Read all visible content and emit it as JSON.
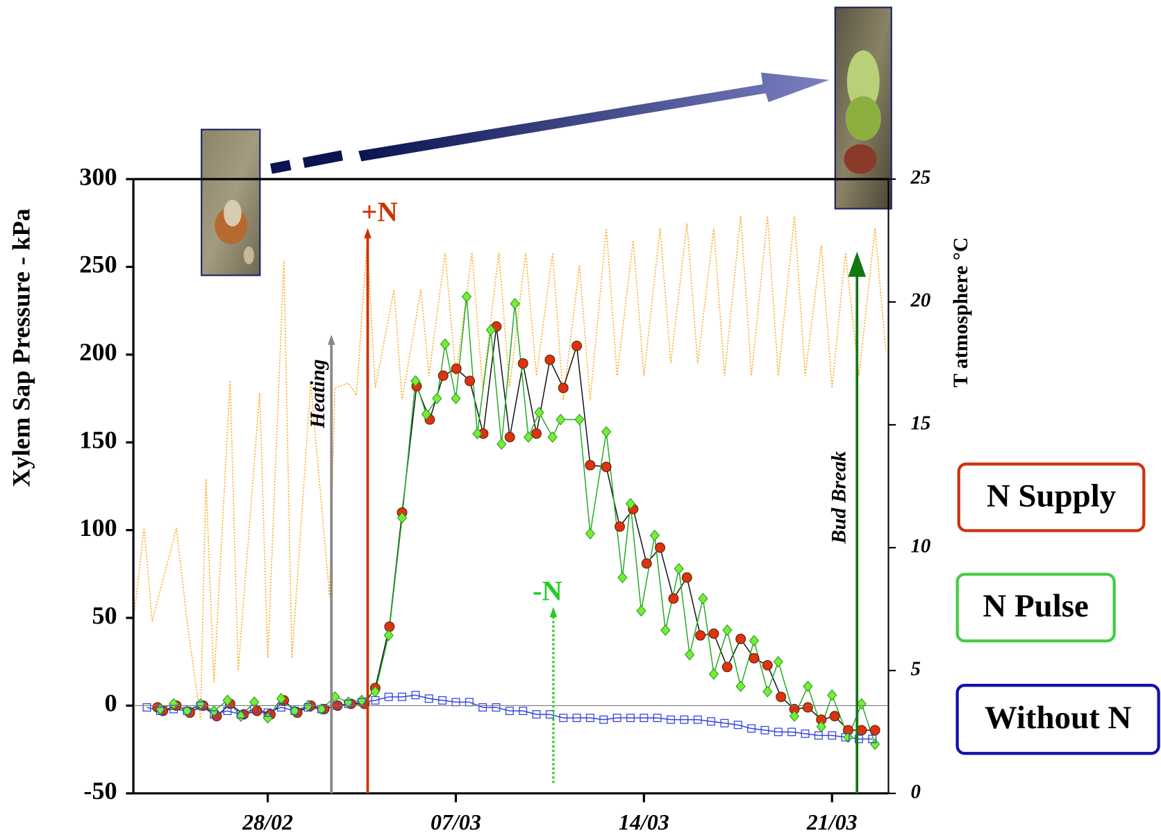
{
  "chart_data": {
    "type": "line",
    "y_label": "Xylem Sap Pressure  -  kPa",
    "y2_label": "T atmosphere °C",
    "xlim": [
      -5,
      23.1
    ],
    "xticks": [
      {
        "value": 0,
        "label": "28/02"
      },
      {
        "value": 7,
        "label": "07/03"
      },
      {
        "value": 14,
        "label": "14/03"
      },
      {
        "value": 21,
        "label": "21/03"
      }
    ],
    "ylim": [
      -50,
      300
    ],
    "yticks": [
      -50,
      0,
      50,
      100,
      150,
      200,
      250,
      300
    ],
    "y2lim": [
      0,
      25
    ],
    "y2ticks": [
      0,
      5,
      10,
      15,
      20,
      25
    ],
    "series": [
      {
        "name": "N Supply",
        "color": "#dd3311",
        "line_color": "#111111",
        "marker": "circle",
        "x": [
          -4.1,
          -3.9,
          -3.4,
          -2.9,
          -2.4,
          -1.9,
          -1.4,
          -0.9,
          -0.4,
          0.1,
          0.6,
          1.1,
          1.6,
          2.1,
          2.6,
          3.1,
          3.6,
          4.0,
          4.53,
          5.0,
          5.54,
          6.03,
          6.53,
          7.02,
          7.52,
          8.02,
          8.51,
          9.01,
          9.5,
          10.0,
          10.5,
          11.0,
          11.5,
          12.0,
          12.6,
          13.1,
          13.6,
          14.1,
          14.6,
          15.1,
          15.6,
          16.1,
          16.6,
          17.1,
          17.6,
          18.1,
          18.6,
          19.1,
          19.6,
          20.1,
          20.6,
          21.1,
          21.6,
          22.1,
          22.6
        ],
        "values": [
          -1,
          -3,
          0,
          -4,
          0,
          -6,
          1,
          -5,
          -3,
          -5,
          3,
          -4,
          0,
          -2,
          0,
          1,
          1,
          10,
          45,
          110,
          182,
          163,
          188,
          192,
          185,
          155,
          216,
          153,
          195,
          155,
          197,
          181,
          205,
          137,
          136,
          102,
          112,
          81,
          90,
          61,
          73,
          40,
          41,
          22,
          38,
          27,
          23,
          5,
          -2,
          -1,
          -8,
          -6,
          -14,
          -14,
          -14
        ]
      },
      {
        "name": "N Pulse",
        "color": "#77ee33",
        "line_color": "#22aa22",
        "marker": "diamond",
        "x": [
          -4.0,
          -3.5,
          -3.0,
          -2.5,
          -2.0,
          -1.5,
          -1.0,
          -0.5,
          0.0,
          0.5,
          1.0,
          1.5,
          2.0,
          2.5,
          3.0,
          3.5,
          4.0,
          4.5,
          5.0,
          5.5,
          5.9,
          6.3,
          6.6,
          7.0,
          7.4,
          7.8,
          8.3,
          8.7,
          9.2,
          9.7,
          10.1,
          10.6,
          10.9,
          11.6,
          12.0,
          12.6,
          13.2,
          13.5,
          13.9,
          14.4,
          14.8,
          15.3,
          15.7,
          16.2,
          16.6,
          17.1,
          17.6,
          18.1,
          18.6,
          19.0,
          19.6,
          20.1,
          20.6,
          21.0,
          21.6,
          22.1,
          22.6
        ],
        "values": [
          -2,
          1,
          -3,
          1,
          -3,
          3,
          -6,
          2,
          -7,
          4,
          -3,
          0,
          -2,
          5,
          2,
          3,
          8,
          40,
          107,
          185,
          166,
          175,
          206,
          175,
          233,
          155,
          214,
          149,
          229,
          153,
          167,
          153,
          163,
          163,
          98,
          156,
          73,
          115,
          54,
          97,
          43,
          78,
          29,
          61,
          18,
          43,
          11,
          37,
          8,
          25,
          -6,
          11,
          -12,
          6,
          -18,
          1,
          -22
        ]
      },
      {
        "name": "Without N",
        "color": "#3344dd",
        "line_color": "#3344dd",
        "marker": "square",
        "x": [
          -4.5,
          -4.0,
          -3.5,
          -3.0,
          -2.5,
          -2.0,
          -1.5,
          -1.0,
          -0.5,
          0.0,
          0.5,
          1.0,
          1.5,
          2.0,
          2.5,
          3.0,
          3.5,
          4.0,
          4.5,
          5.0,
          5.5,
          6.0,
          6.5,
          7.0,
          7.5,
          8.0,
          8.5,
          9.0,
          9.5,
          10.0,
          10.5,
          11.0,
          11.5,
          12.0,
          12.5,
          13.0,
          13.5,
          14.0,
          14.5,
          15.0,
          15.5,
          16.0,
          16.5,
          17.0,
          17.5,
          18.0,
          18.5,
          19.0,
          19.5,
          20.0,
          20.5,
          21.0,
          21.5,
          22.0,
          22.5
        ],
        "values": [
          -1,
          -3,
          -2,
          -3,
          0,
          -5,
          -3,
          -5,
          -2,
          -4,
          -1,
          -3,
          -1,
          -2,
          0,
          1,
          2,
          3,
          5,
          5,
          6,
          4,
          3,
          2,
          2,
          -1,
          -1,
          -3,
          -3,
          -5,
          -5,
          -7,
          -7,
          -7,
          -8,
          -7,
          -7,
          -7,
          -7,
          -8,
          -8,
          -8,
          -9,
          -10,
          -11,
          -13,
          -14,
          -15,
          -15,
          -16,
          -17,
          -17,
          -18,
          -19,
          -19
        ]
      },
      {
        "axis": "y2",
        "color": "#ffaa22",
        "dash": true,
        "x": [
          -5.0,
          -4.6,
          -4.3,
          -3.4,
          -3.0,
          -2.5,
          -2.3,
          -2.0,
          -1.4,
          -1.1,
          -0.3,
          0.0,
          0.6,
          0.9,
          1.6,
          2.3,
          2.5,
          3.0,
          3.3,
          3.7,
          4.0,
          4.7,
          5.0,
          5.7,
          6.0,
          6.6,
          7.0,
          7.6,
          8.0,
          8.6,
          9.0,
          9.6,
          10.0,
          10.6,
          11.0,
          11.6,
          12.0,
          12.6,
          13.0,
          13.6,
          14.0,
          14.6,
          15.0,
          15.6,
          16.0,
          16.6,
          17.0,
          17.6,
          18.0,
          18.6,
          19.0,
          19.6,
          20.0,
          20.6,
          21.0,
          21.5,
          22.0,
          22.6,
          23.0
        ],
        "values": [
          7.0,
          10.8,
          7.0,
          10.8,
          7.0,
          3.0,
          12.8,
          4.5,
          16.8,
          5.0,
          16.3,
          5.5,
          21.7,
          5.5,
          16.7,
          8.0,
          16.5,
          16.7,
          16.2,
          22.5,
          16.5,
          20.5,
          16.0,
          20.5,
          17.0,
          22.0,
          17.0,
          22.0,
          16.5,
          22.0,
          16.5,
          22.0,
          17.0,
          22.0,
          16.0,
          21.5,
          16.0,
          23.0,
          17.0,
          22.5,
          17.0,
          23.0,
          17.5,
          23.2,
          17.5,
          23.0,
          17.0,
          23.5,
          17.0,
          23.5,
          17.0,
          23.5,
          17.0,
          22.3,
          16.5,
          22.0,
          17.0,
          23.0,
          18.0
        ]
      }
    ],
    "annotations": [
      {
        "text": "Heating",
        "x": 2.37,
        "color": "#888888"
      },
      {
        "text": "+N",
        "x": 3.72,
        "color": "#cc3300"
      },
      {
        "text": "-N",
        "x": 10.63,
        "color": "#22cc22"
      },
      {
        "text": "Bud Break",
        "x": 21.93,
        "color": "#117711"
      }
    ]
  }
}
